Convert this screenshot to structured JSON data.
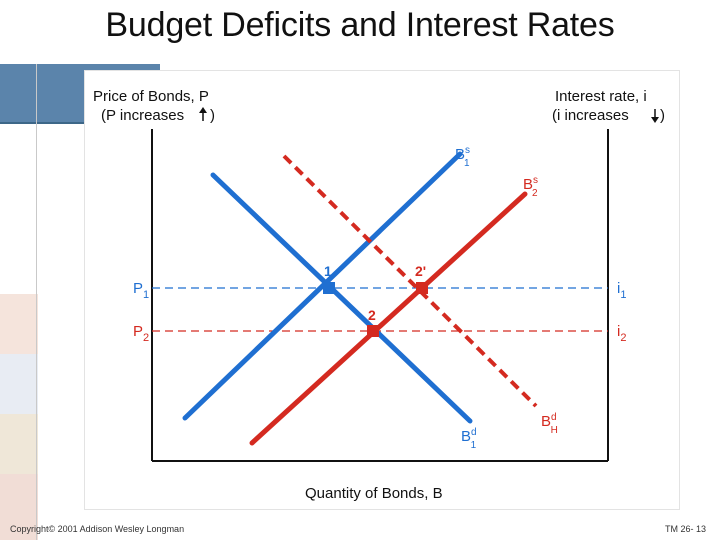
{
  "title": "Budget Deficits and Interest Rates",
  "footer": {
    "copyright": "Copyright© 2001 Addison Wesley Longman",
    "slide_number": "TM 26- 13"
  },
  "diagram": {
    "left_axis": {
      "line1": "Price of Bonds, P",
      "line2_pre": "(P increases",
      "line2_post": ")"
    },
    "right_axis": {
      "line1": "Interest rate, i",
      "line2_pre": "(i increases",
      "line2_post": ")"
    },
    "x_axis_label": "Quantity of Bonds, B",
    "price_levels": [
      {
        "name": "P",
        "sub": "1",
        "rate_name": "i",
        "rate_sub": "1",
        "color": "#1f6fd1"
      },
      {
        "name": "P",
        "sub": "2",
        "rate_name": "i",
        "rate_sub": "2",
        "color": "#d42a20"
      }
    ],
    "points": [
      {
        "label": "1",
        "color": "#1f6fd1"
      },
      {
        "label": "2",
        "color": "#d42a20"
      },
      {
        "label": "2'",
        "color": "#d42a20"
      }
    ],
    "curves": {
      "supply_1": {
        "name": "B",
        "sup": "s",
        "sub": "1",
        "color": "#1f6fd1"
      },
      "supply_2": {
        "name": "B",
        "sup": "s",
        "sub": "2",
        "color": "#d42a20"
      },
      "demand_1": {
        "name": "B",
        "sup": "d",
        "sub": "1",
        "color": "#1f6fd1"
      },
      "demand_2": {
        "name": "B",
        "sup": "d",
        "sub": "H",
        "color": "#d42a20"
      }
    }
  },
  "deco_colors": [
    "#f5e4dc",
    "#e8ecf3",
    "#efe7d8",
    "#f1ddd6"
  ]
}
